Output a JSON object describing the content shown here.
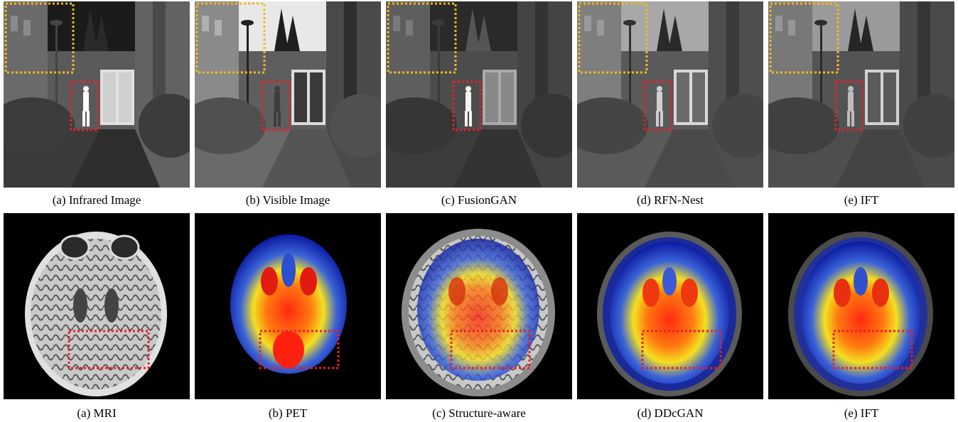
{
  "rows": [
    {
      "captions": [
        "(a) Infrared Image",
        "(b) Visible Image",
        "(c) FusionGAN",
        "(d) RFN-Nest",
        "(e) IFT"
      ]
    },
    {
      "captions": [
        "(a) MRI",
        "(b) PET",
        "(c) Structure-aware",
        "(d) DDcGAN",
        "(e) IFT"
      ]
    }
  ],
  "colors": {
    "highlight_box_red": "#e8202a",
    "highlight_box_yellow": "#f5b81c"
  }
}
